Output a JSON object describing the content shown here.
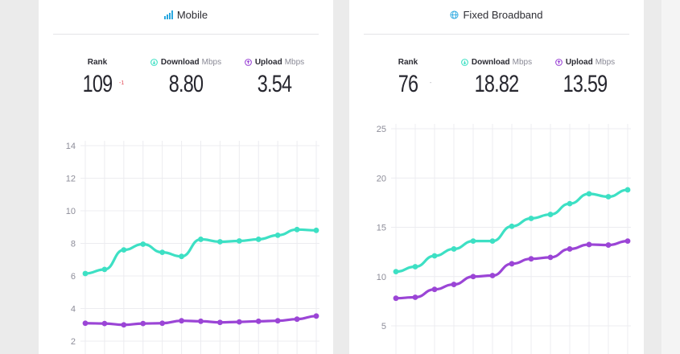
{
  "colors": {
    "download": "#3de0c4",
    "upload": "#9b45d6",
    "grid": "#ececf0",
    "mobile_icon": "#2aa8e0",
    "broadband_icon": "#2aa8e0",
    "rank_change": "#e44b57"
  },
  "mobile": {
    "title": "Mobile",
    "icon": "signal-bars-icon",
    "rank_label": "Rank",
    "rank_value": "109",
    "rank_change": "-1",
    "download_label": "Download",
    "download_unit": "Mbps",
    "download_value": "8.80",
    "upload_label": "Upload",
    "upload_unit": "Mbps",
    "upload_value": "3.54"
  },
  "broadband": {
    "title": "Fixed Broadband",
    "icon": "globe-icon",
    "rank_label": "Rank",
    "rank_value": "76",
    "rank_change": "-",
    "download_label": "Download",
    "download_unit": "Mbps",
    "download_value": "18.82",
    "upload_label": "Upload",
    "upload_unit": "Mbps",
    "upload_value": "13.59"
  },
  "chart_data": [
    {
      "type": "line",
      "ylim": [
        2,
        14
      ],
      "yticks": [
        2,
        4,
        6,
        8,
        10,
        12,
        14
      ],
      "grid": true,
      "series": [
        {
          "name": "Download",
          "values": [
            6.15,
            6.4,
            7.6,
            7.95,
            7.45,
            7.2,
            8.25,
            8.1,
            8.15,
            8.25,
            8.5,
            8.85,
            8.8
          ]
        },
        {
          "name": "Upload",
          "values": [
            3.1,
            3.08,
            3.0,
            3.08,
            3.1,
            3.25,
            3.22,
            3.15,
            3.18,
            3.22,
            3.25,
            3.35,
            3.54
          ]
        }
      ]
    },
    {
      "type": "line",
      "ylim": [
        5,
        25
      ],
      "yticks": [
        5,
        10,
        15,
        20,
        25
      ],
      "grid": true,
      "series": [
        {
          "name": "Download",
          "values": [
            10.5,
            11.0,
            12.1,
            12.8,
            13.6,
            13.6,
            15.1,
            15.9,
            16.3,
            17.4,
            18.4,
            18.1,
            18.8
          ]
        },
        {
          "name": "Upload",
          "values": [
            7.8,
            7.9,
            8.7,
            9.2,
            10.0,
            10.1,
            11.3,
            11.8,
            11.95,
            12.8,
            13.25,
            13.2,
            13.6
          ]
        }
      ]
    }
  ]
}
